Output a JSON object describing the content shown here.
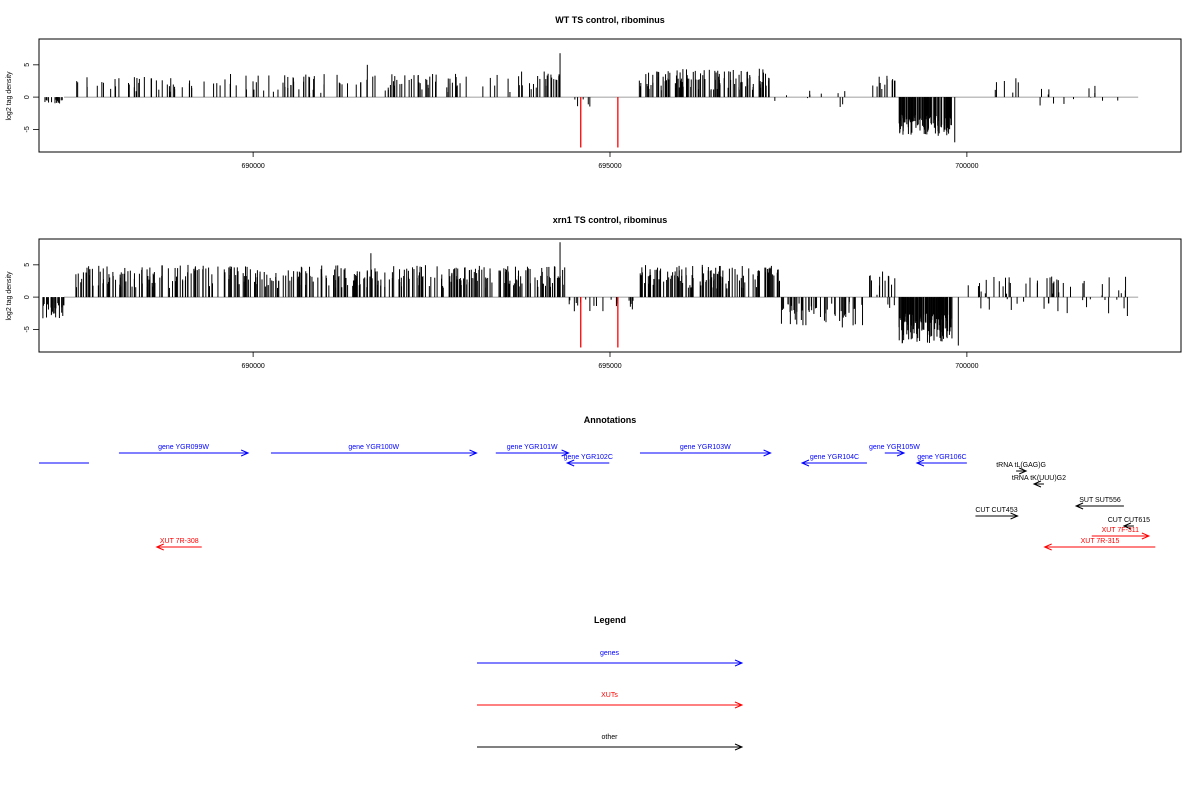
{
  "chart_data": [
    {
      "type": "bar",
      "title": "WT TS control, ribominus",
      "ylabel": "log2 tag density",
      "xlabel": "",
      "xlim": [
        687000,
        703000
      ],
      "ylim": [
        -8.5,
        9
      ],
      "yticks": [
        -5,
        0,
        5
      ],
      "xticks": [
        690000,
        695000,
        700000
      ],
      "xticklabels": [
        "690000",
        "695000",
        "700000"
      ],
      "series": [
        {
          "color": "#000000",
          "segments": [
            [
              687050,
              687350,
              -1.2,
              -0.4,
              15
            ],
            [
              687500,
              689500,
              0.8,
              3.2,
              40
            ],
            [
              689500,
              693700,
              0.6,
              3.6,
              95
            ],
            [
              693700,
              694300,
              1.2,
              4.0,
              25
            ],
            [
              694500,
              694800,
              -1.6,
              -0.2,
              5
            ],
            [
              695400,
              697300,
              1.0,
              4.4,
              110
            ],
            [
              697300,
              698300,
              -1.6,
              1.0,
              10
            ],
            [
              698600,
              699000,
              0.6,
              3.4,
              12
            ],
            [
              699050,
              699800,
              -6.0,
              -2.5,
              110
            ],
            [
              700300,
              700800,
              0.6,
              3.0,
              6
            ],
            [
              701000,
              702200,
              -2.0,
              2.0,
              14
            ]
          ],
          "extremes": [
            [
              694300,
              6.8
            ],
            [
              691600,
              5.0
            ],
            [
              699830,
              -7.0
            ]
          ]
        },
        {
          "color": "#ff0000",
          "bars": [
            [
              694590,
              -7.8
            ],
            [
              695110,
              -7.8
            ]
          ]
        }
      ]
    },
    {
      "type": "bar",
      "title": "xrn1 TS control, ribominus",
      "ylabel": "log2 tag density",
      "xlabel": "",
      "xlim": [
        687000,
        703000
      ],
      "ylim": [
        -8.5,
        9
      ],
      "yticks": [
        -5,
        0,
        5
      ],
      "xticks": [
        690000,
        695000,
        700000
      ],
      "xticklabels": [
        "690000",
        "695000",
        "700000"
      ],
      "series": [
        {
          "color": "#000000",
          "segments": [
            [
              687050,
              687350,
              -3.5,
              -0.8,
              25
            ],
            [
              687500,
              693350,
              1.4,
              5.0,
              300
            ],
            [
              693400,
              694400,
              1.5,
              4.8,
              60
            ],
            [
              694400,
              695350,
              -2.2,
              -0.3,
              20
            ],
            [
              695400,
              697400,
              1.2,
              5.0,
              120
            ],
            [
              697400,
              698550,
              -5.0,
              -0.6,
              50
            ],
            [
              698600,
              699000,
              -2.0,
              4.0,
              15
            ],
            [
              699050,
              699800,
              -7.2,
              -2.5,
              120
            ],
            [
              700000,
              702300,
              -3.0,
              3.2,
              60
            ]
          ],
          "extremes": [
            [
              694300,
              8.5
            ],
            [
              691650,
              6.8
            ],
            [
              699880,
              -7.5
            ]
          ]
        },
        {
          "color": "#ff0000",
          "bars": [
            [
              694590,
              -7.8
            ],
            [
              695110,
              -7.8
            ]
          ]
        }
      ]
    }
  ],
  "annotations": {
    "title": "Annotations",
    "features": [
      {
        "label": "",
        "class": "gene",
        "color": "#0000ff",
        "start": 687000,
        "end": 687700,
        "dir": "none",
        "row": 1
      },
      {
        "label": "gene YGR099W",
        "class": "gene",
        "color": "#0000ff",
        "start": 688120,
        "end": 689930,
        "dir": "+",
        "row": 0
      },
      {
        "label": "gene YGR100W",
        "class": "gene",
        "color": "#0000ff",
        "start": 690250,
        "end": 693130,
        "dir": "+",
        "row": 0
      },
      {
        "label": "gene YGR101W",
        "class": "gene",
        "color": "#0000ff",
        "start": 693400,
        "end": 694420,
        "dir": "+",
        "row": 0
      },
      {
        "label": "gene YGR102C",
        "class": "gene",
        "color": "#0000ff",
        "start": 694400,
        "end": 694990,
        "dir": "-",
        "row": 1
      },
      {
        "label": "gene YGR103W",
        "class": "gene",
        "color": "#0000ff",
        "start": 695420,
        "end": 697250,
        "dir": "+",
        "row": 0
      },
      {
        "label": "gene YGR104C",
        "class": "gene",
        "color": "#0000ff",
        "start": 697690,
        "end": 698600,
        "dir": "-",
        "row": 1
      },
      {
        "label": "gene YGR105W",
        "class": "gene",
        "color": "#0000ff",
        "start": 698850,
        "end": 699120,
        "dir": "+",
        "row": 0
      },
      {
        "label": "gene YGR106C",
        "class": "gene",
        "color": "#0000ff",
        "start": 699300,
        "end": 700000,
        "dir": "-",
        "row": 1
      },
      {
        "label": "tRNA tL(GAG)G",
        "class": "other",
        "color": "#000000",
        "start": 700720,
        "end": 700800,
        "dir": "+",
        "row": 2
      },
      {
        "label": "tRNA tK(UUU)G2",
        "class": "other",
        "color": "#000000",
        "start": 700970,
        "end": 701050,
        "dir": "-",
        "row": 3
      },
      {
        "label": "SUT SUT556",
        "class": "other",
        "color": "#000000",
        "start": 701530,
        "end": 702200,
        "dir": "-",
        "row": 4
      },
      {
        "label": "CUT CUT453",
        "class": "other",
        "color": "#000000",
        "start": 700120,
        "end": 700710,
        "dir": "+",
        "row": 5
      },
      {
        "label": "CUT CUT615",
        "class": "other",
        "color": "#000000",
        "start": 702230,
        "end": 702310,
        "dir": "-",
        "row": 6
      },
      {
        "label": "XUT 7F-311",
        "class": "XUT",
        "color": "#ff0000",
        "start": 701750,
        "end": 702550,
        "dir": "+",
        "row": 7
      },
      {
        "label": "XUT 7R-308",
        "class": "XUT",
        "color": "#ff0000",
        "start": 688650,
        "end": 689280,
        "dir": "-",
        "row": 8
      },
      {
        "label": "XUT 7R-315",
        "class": "XUT",
        "color": "#ff0000",
        "start": 701090,
        "end": 702640,
        "dir": "-",
        "row": 8
      }
    ]
  },
  "legend": {
    "title": "Legend",
    "items": [
      {
        "label": "genes",
        "color": "#0000ff"
      },
      {
        "label": "XUTs",
        "color": "#ff0000"
      },
      {
        "label": "other",
        "color": "#000000"
      }
    ]
  }
}
